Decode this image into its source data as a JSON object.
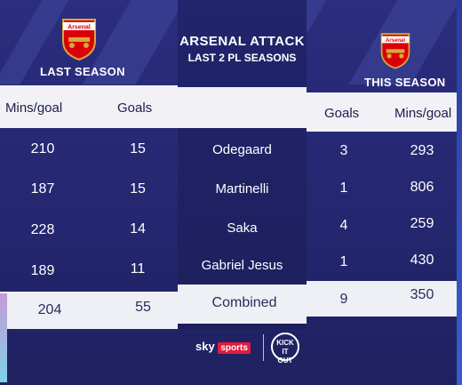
{
  "title": {
    "line1": "ARSENAL ATTACK",
    "line2": "LAST 2 PL SEASONS"
  },
  "left_panel": {
    "season_label": "LAST SEASON",
    "col_mins": "Mins/goal",
    "col_goals": "Goals"
  },
  "right_panel": {
    "season_label": "THIS SEASON",
    "col_goals": "Goals",
    "col_mins": "Mins/goal"
  },
  "rows": [
    {
      "player": "Odegaard",
      "last_mins": "210",
      "last_goals": "15",
      "this_goals": "3",
      "this_mins": "293"
    },
    {
      "player": "Martinelli",
      "last_mins": "187",
      "last_goals": "15",
      "this_goals": "1",
      "this_mins": "806"
    },
    {
      "player": "Saka",
      "last_mins": "228",
      "last_goals": "14",
      "this_goals": "4",
      "this_mins": "259"
    },
    {
      "player": "Gabriel Jesus",
      "last_mins": "189",
      "last_goals": "11",
      "this_goals": "1",
      "this_mins": "430"
    }
  ],
  "combined": {
    "label": "Combined",
    "last_mins": "204",
    "last_goals": "55",
    "this_goals": "9",
    "this_mins": "350"
  },
  "footer": {
    "broadcaster": "sky",
    "broadcaster_sub": "sports",
    "partner_line1": "KICK",
    "partner_line2": "IT",
    "partner_line3": "OUT"
  },
  "crest": {
    "text": "Arsenal"
  },
  "colors": {
    "background": "#2b2d7e",
    "light_row": "#eef0f6",
    "crest_red": "#db0007",
    "text_dark": "#1b1d4a"
  }
}
